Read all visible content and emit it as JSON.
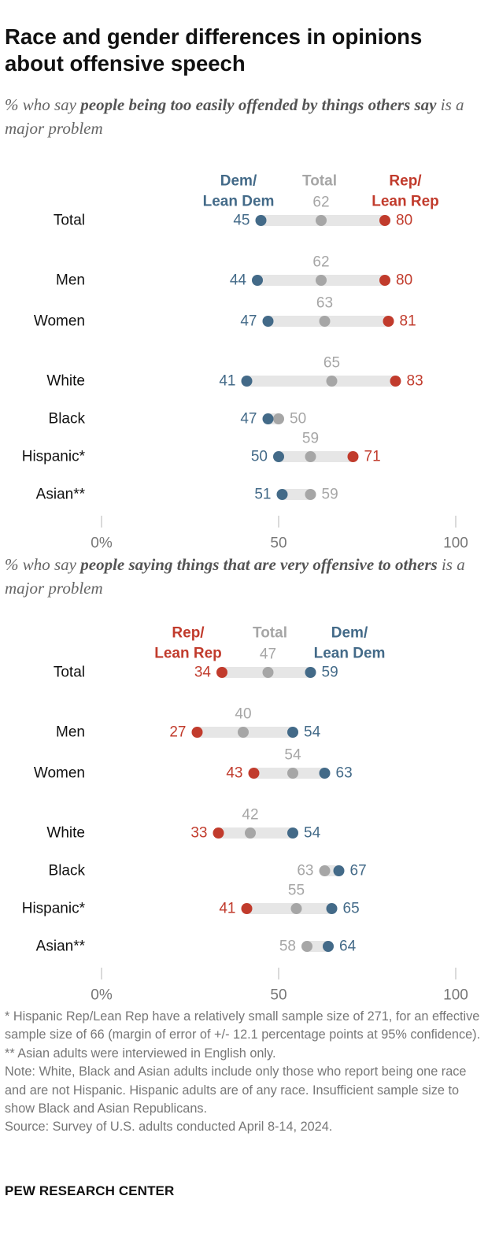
{
  "title": "Race and gender differences in opinions about offensive speech",
  "colors": {
    "dem": "#436a88",
    "rep": "#c13b2c",
    "total": "#a6a6a6",
    "bar": "#e6e6e6"
  },
  "panels": [
    {
      "subtitle_prefix": "% who say ",
      "subtitle_bold": "people being too easily offended by things others say",
      "subtitle_suffix": " is a major problem"
    },
    {
      "subtitle_prefix": "% who say ",
      "subtitle_bold": "people saying things that are very offensive to others",
      "subtitle_suffix": " is a major problem"
    }
  ],
  "chart_data": [
    {
      "type": "dot",
      "xlim": [
        0,
        100
      ],
      "xticks": [
        0,
        50,
        100
      ],
      "xticklabels": [
        "0%",
        "50",
        "100"
      ],
      "categories": [
        "Total",
        "Men",
        "Women",
        "White",
        "Black",
        "Hispanic*",
        "Asian**"
      ],
      "header": {
        "left": [
          "Dem/",
          "Lean Dem"
        ],
        "middle": "Total",
        "right": [
          "Rep/",
          "Lean Rep"
        ]
      },
      "series": [
        {
          "name": "Dem/Lean Dem",
          "values": [
            45,
            44,
            47,
            41,
            47,
            50,
            51
          ]
        },
        {
          "name": "Total",
          "values": [
            62,
            62,
            63,
            65,
            50,
            59,
            59
          ]
        },
        {
          "name": "Rep/Lean Rep",
          "values": [
            80,
            80,
            81,
            83,
            null,
            71,
            null
          ]
        }
      ]
    },
    {
      "type": "dot",
      "xlim": [
        0,
        100
      ],
      "xticks": [
        0,
        50,
        100
      ],
      "xticklabels": [
        "0%",
        "50",
        "100"
      ],
      "categories": [
        "Total",
        "Men",
        "Women",
        "White",
        "Black",
        "Hispanic*",
        "Asian**"
      ],
      "header": {
        "left": [
          "Rep/",
          "Lean Rep"
        ],
        "middle": "Total",
        "right": [
          "Dem/",
          "Lean Dem"
        ]
      },
      "series": [
        {
          "name": "Rep/Lean Rep",
          "values": [
            34,
            27,
            43,
            33,
            null,
            41,
            null
          ]
        },
        {
          "name": "Total",
          "values": [
            47,
            40,
            54,
            42,
            63,
            55,
            58
          ]
        },
        {
          "name": "Dem/Lean Dem",
          "values": [
            59,
            54,
            63,
            54,
            67,
            65,
            64
          ]
        }
      ]
    }
  ],
  "footnotes": [
    "* Hispanic Rep/Lean Rep have a relatively small sample size of 271, for an effective sample size of 66 (margin of error of +/- 12.1 percentage points at 95% confidence).",
    "** Asian adults were interviewed in English only.",
    "Note: White, Black and Asian adults include only those who report being one race and are not Hispanic. Hispanic adults are of any race. Insufficient sample size to show Black and Asian Republicans.",
    "Source: Survey of U.S. adults conducted April 8-14, 2024."
  ],
  "brand": "PEW RESEARCH CENTER"
}
